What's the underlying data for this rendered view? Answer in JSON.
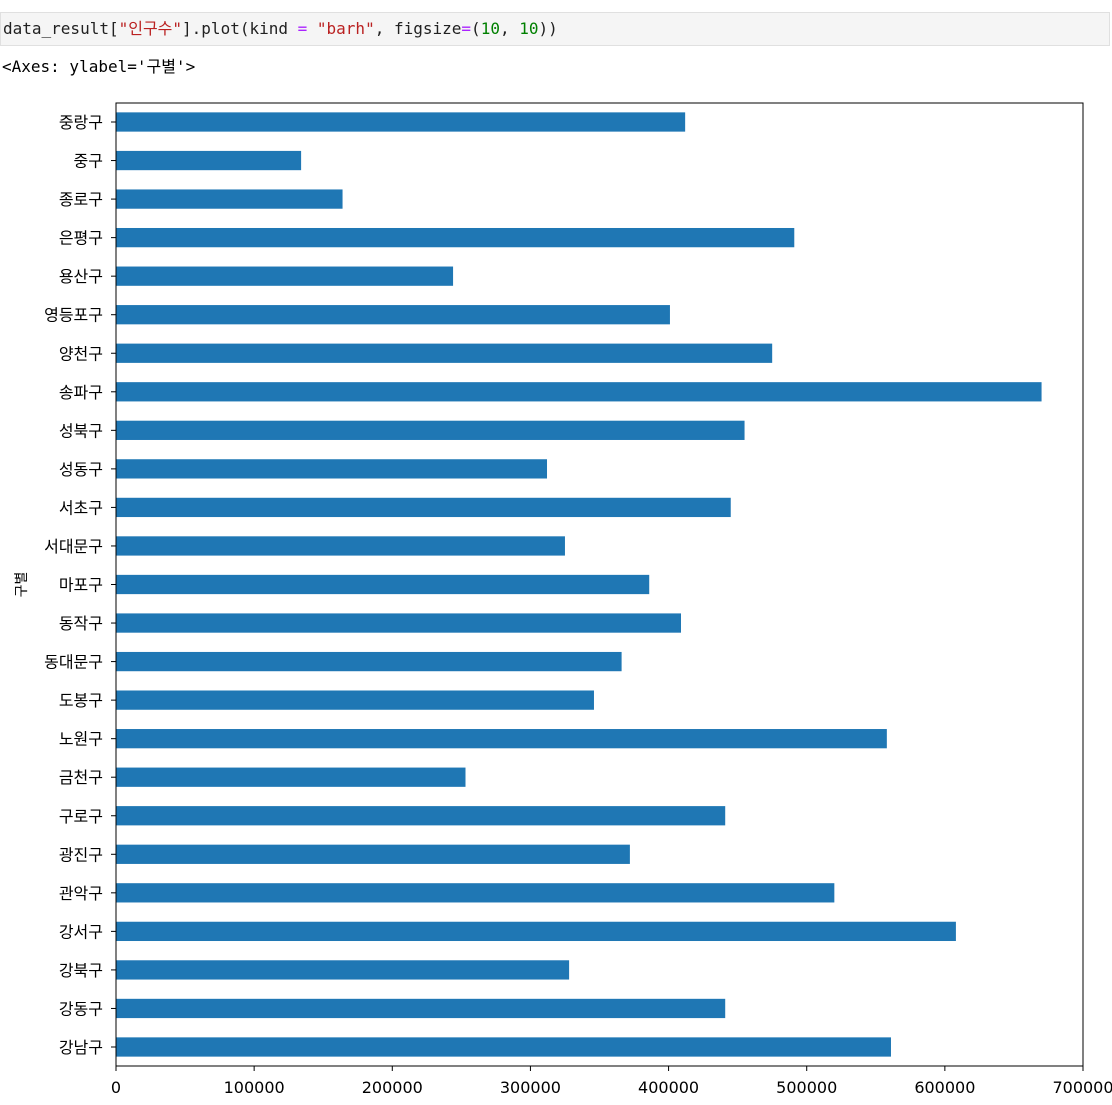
{
  "code": {
    "prefix": "data_result[",
    "string_arg": "\"인구수\"",
    "mid": "].plot(kind ",
    "eq1": "=",
    "kind_value": " \"barh\"",
    "comma": ", figsize",
    "eq2": "=",
    "open": "(",
    "num1": "10",
    "sep": ", ",
    "num2": "10",
    "close": "))"
  },
  "output": {
    "text": "<Axes: ylabel='구별'>"
  },
  "chart_data": {
    "type": "bar",
    "orientation": "horizontal",
    "ylabel": "구별",
    "xlabel": "",
    "xlim": [
      0,
      700000
    ],
    "xticks": [
      0,
      100000,
      200000,
      300000,
      400000,
      500000,
      600000,
      700000
    ],
    "xtick_labels": [
      "0",
      "100000",
      "200000",
      "300000",
      "400000",
      "500000",
      "600000",
      "700000"
    ],
    "bar_color": "#1f77b4",
    "grid": false,
    "categories": [
      "강남구",
      "강동구",
      "강북구",
      "강서구",
      "관악구",
      "광진구",
      "구로구",
      "금천구",
      "노원구",
      "도봉구",
      "동대문구",
      "동작구",
      "마포구",
      "서대문구",
      "서초구",
      "성동구",
      "성북구",
      "송파구",
      "양천구",
      "영등포구",
      "용산구",
      "은평구",
      "종로구",
      "중구",
      "중랑구"
    ],
    "values": [
      561000,
      441000,
      328000,
      608000,
      520000,
      372000,
      441000,
      253000,
      558000,
      346000,
      366000,
      409000,
      386000,
      325000,
      445000,
      312000,
      455000,
      670000,
      475000,
      401000,
      244000,
      491000,
      164000,
      134000,
      412000
    ]
  }
}
